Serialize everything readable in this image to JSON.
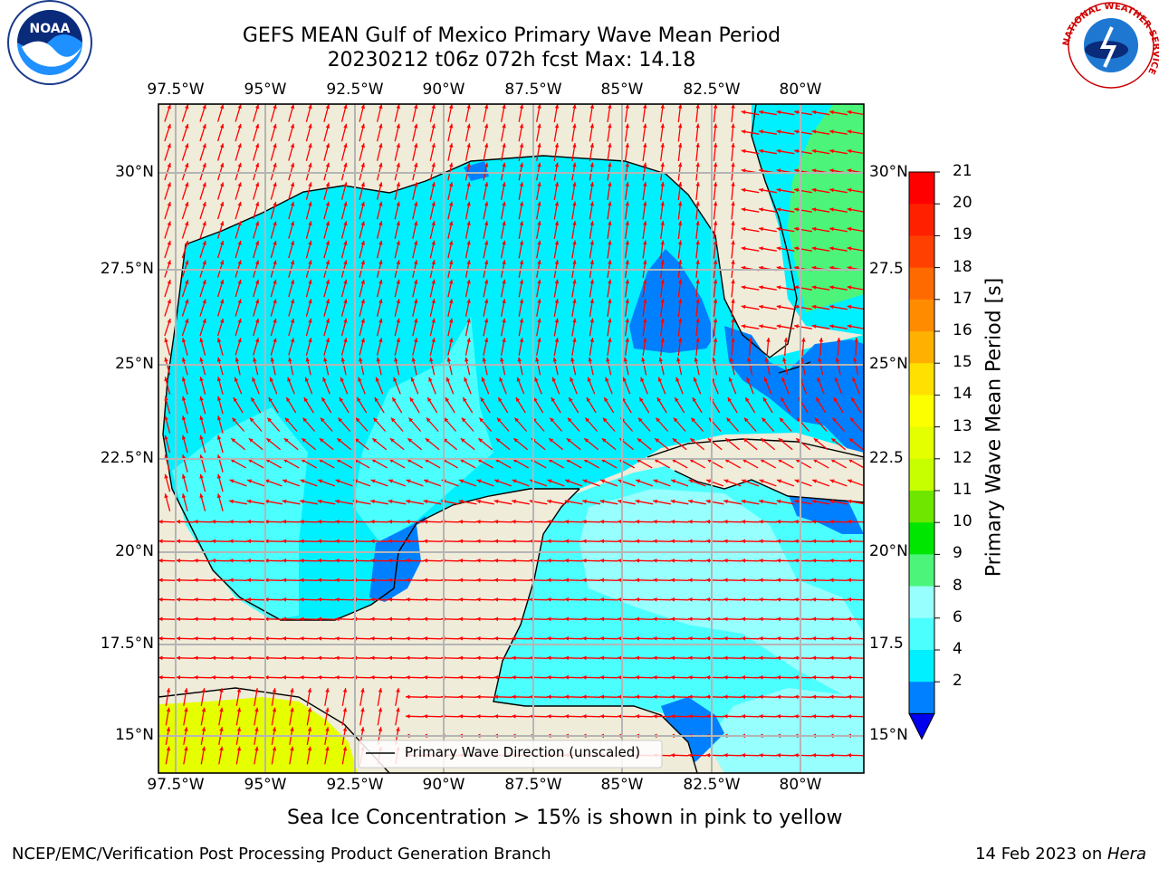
{
  "title": {
    "line1": "GEFS MEAN Gulf of Mexico Primary Wave Mean Period",
    "line2": "20230212 t06z 072h fcst   Max: 14.18"
  },
  "lon_labels": [
    "97.5°W",
    "95°W",
    "92.5°W",
    "90°W",
    "87.5°W",
    "85°W",
    "82.5°W",
    "80°W"
  ],
  "lat_labels_left": [
    "30°N",
    "27.5°N",
    "25°N",
    "22.5°N",
    "20°N",
    "17.5°N",
    "15°N"
  ],
  "lat_labels_right": [
    "30°N",
    "27.5",
    "25°N",
    "22.5",
    "20°N",
    "17.5",
    "15°N"
  ],
  "legend": {
    "label": "Primary Wave Direction (unscaled)"
  },
  "colorbar": {
    "label": "Primary Wave Mean Period [s]",
    "ticks": [
      "21",
      "20",
      "19",
      "18",
      "17",
      "16",
      "15",
      "14",
      "13",
      "12",
      "11",
      "10",
      "9",
      "8",
      "6",
      "4",
      "2"
    ],
    "colors": [
      "#ff0000",
      "#ff2000",
      "#ff4000",
      "#ff6a00",
      "#ff8c00",
      "#ffb000",
      "#ffe000",
      "#fbff00",
      "#e3ff00",
      "#c8ff00",
      "#6ee600",
      "#00e600",
      "#4cf57a",
      "#98ffff",
      "#4cffff",
      "#00f0ff",
      "#0080ff"
    ],
    "extend_color": "#0000ee"
  },
  "colors": {
    "land": "#efecd9",
    "coast": "#000000",
    "grid": "#b5b5b5",
    "arrow": "#ff0000",
    "ice": "#e6ff00"
  },
  "note": "Sea Ice Concentration > 15% is shown in pink to yellow",
  "footer": {
    "left": "NCEP/EMC/Verification Post Processing Product Generation Branch",
    "right_date": "14 Feb 2023 on ",
    "right_host": "Hera"
  },
  "logos": {
    "left": "NOAA",
    "right_ring": "NATIONAL WEATHER SERVICE"
  }
}
